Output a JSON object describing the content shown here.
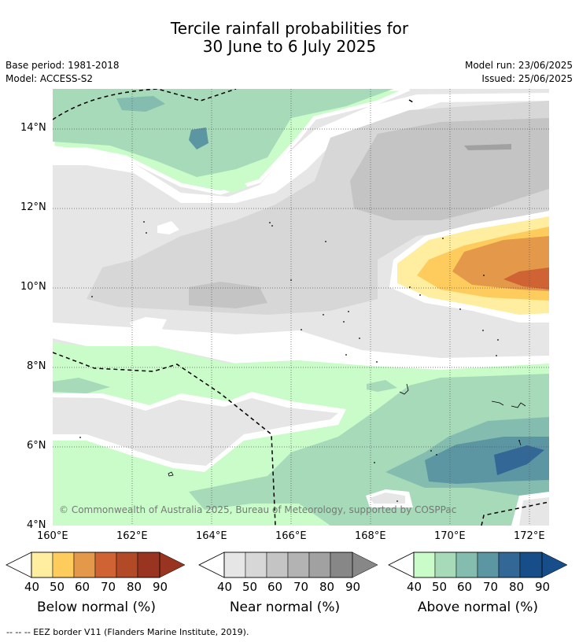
{
  "title": {
    "line1": "Tercile rainfall probabilities for",
    "line2": "30 June to 6 July 2025"
  },
  "meta": {
    "base_period": "Base period: 1981-2018",
    "model": "Model: ACCESS-S2",
    "model_run": "Model run: 23/06/2025",
    "issued": "Issued: 25/06/2025"
  },
  "axes": {
    "lat_ticks": [
      "14°N",
      "12°N",
      "10°N",
      "8°N",
      "6°N",
      "4°N"
    ],
    "lon_ticks": [
      "160°E",
      "162°E",
      "164°E",
      "166°E",
      "168°E",
      "170°E",
      "172°E"
    ]
  },
  "copyright": "© Commonwealth of Australia 2025, Bureau of Meteorology, supported by COSPPac",
  "colorbars": [
    {
      "title": "Below normal (%)",
      "labels": [
        "40",
        "50",
        "60",
        "70",
        "80",
        "90"
      ],
      "colors": [
        "#ffeda0",
        "#fecc5c",
        "#e3984a",
        "#cf6333",
        "#b24a28",
        "#98341f"
      ]
    },
    {
      "title": "Near normal (%)",
      "labels": [
        "40",
        "50",
        "60",
        "70",
        "80",
        "90"
      ],
      "colors": [
        "#e6e6e6",
        "#d7d7d7",
        "#c4c4c4",
        "#b3b3b3",
        "#a1a1a1",
        "#878787"
      ]
    },
    {
      "title": "Above normal (%)",
      "labels": [
        "40",
        "50",
        "60",
        "70",
        "80",
        "90"
      ],
      "colors": [
        "#c9fcc9",
        "#a6dab9",
        "#84bdaf",
        "#5d96a3",
        "#336796",
        "#174d89"
      ]
    }
  ],
  "footnote": "--  --  -- EEZ border V11 (Flanders Marine Institute, 2019)."
}
